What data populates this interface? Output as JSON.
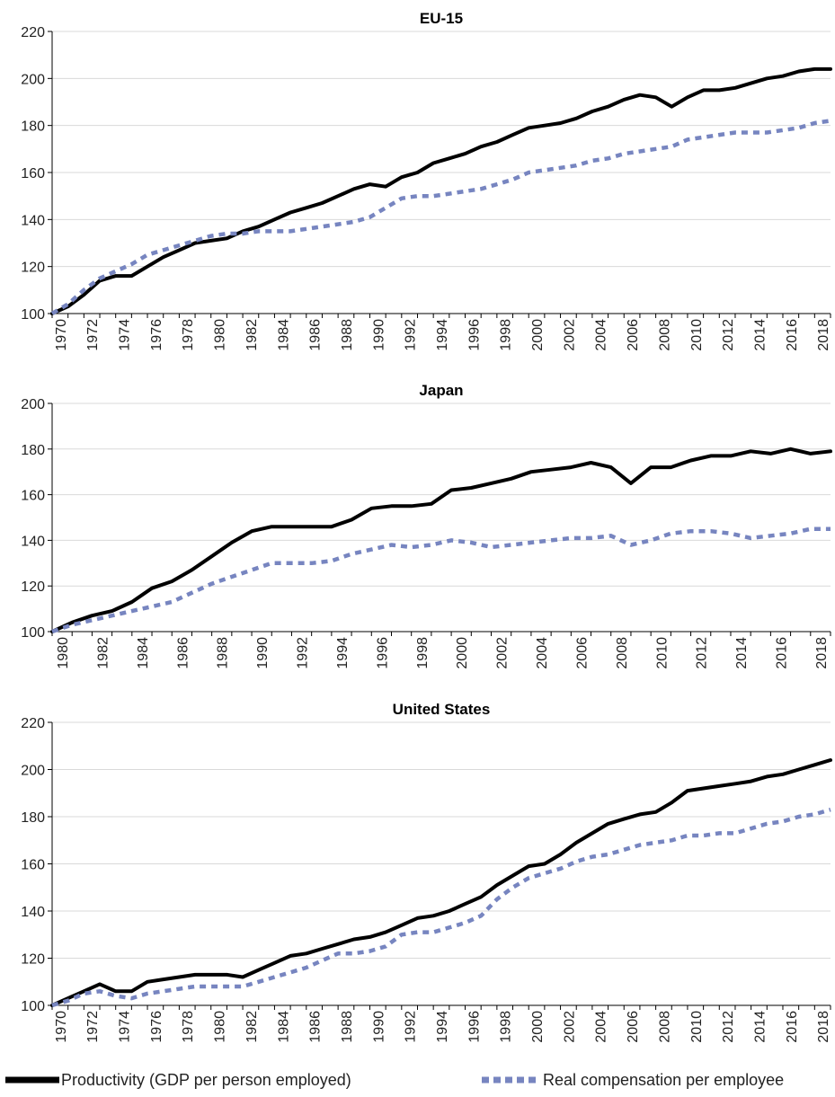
{
  "chart_data": [
    {
      "type": "line",
      "title": "EU-15",
      "ylim": [
        100,
        220
      ],
      "yticks": [
        100,
        120,
        140,
        160,
        180,
        200,
        220
      ],
      "xlim": [
        1970,
        2019
      ],
      "xticks": [
        "1970",
        "1972",
        "1974",
        "1976",
        "1978",
        "1980",
        "1982",
        "1984",
        "1986",
        "1988",
        "1990",
        "1992",
        "1994",
        "1996",
        "1998",
        "2000",
        "2002",
        "2004",
        "2006",
        "2008",
        "2010",
        "2012",
        "2014",
        "2016",
        "2018"
      ],
      "grid": true,
      "x": [
        1970,
        1971,
        1972,
        1973,
        1974,
        1975,
        1976,
        1977,
        1978,
        1979,
        1980,
        1981,
        1982,
        1983,
        1984,
        1985,
        1986,
        1987,
        1988,
        1989,
        1990,
        1991,
        1992,
        1993,
        1994,
        1995,
        1996,
        1997,
        1998,
        1999,
        2000,
        2001,
        2002,
        2003,
        2004,
        2005,
        2006,
        2007,
        2008,
        2009,
        2010,
        2011,
        2012,
        2013,
        2014,
        2015,
        2016,
        2017,
        2018,
        2019
      ],
      "series": [
        {
          "name": "Productivity (GDP per person employed)",
          "color": "#000000",
          "style": "solid",
          "values": [
            100,
            103,
            108,
            114,
            116,
            116,
            120,
            124,
            127,
            130,
            131,
            132,
            135,
            137,
            140,
            143,
            145,
            147,
            150,
            153,
            155,
            154,
            158,
            160,
            164,
            166,
            168,
            171,
            173,
            176,
            179,
            180,
            181,
            183,
            186,
            188,
            191,
            193,
            192,
            188,
            192,
            195,
            195,
            196,
            198,
            200,
            201,
            203,
            204,
            204
          ]
        },
        {
          "name": "Real compensation per employee",
          "color": "#7785c0",
          "style": "dashed",
          "values": [
            100,
            104,
            110,
            115,
            118,
            121,
            125,
            127,
            129,
            131,
            133,
            134,
            134,
            135,
            135,
            135,
            136,
            137,
            138,
            139,
            141,
            145,
            149,
            150,
            150,
            151,
            152,
            153,
            155,
            157,
            160,
            161,
            162,
            163,
            165,
            166,
            168,
            169,
            170,
            171,
            174,
            175,
            176,
            177,
            177,
            177,
            178,
            179,
            181,
            182
          ]
        }
      ]
    },
    {
      "type": "line",
      "title": "Japan",
      "ylim": [
        100,
        200
      ],
      "yticks": [
        100,
        120,
        140,
        160,
        180,
        200
      ],
      "xlim": [
        1980,
        2019
      ],
      "xticks": [
        "1980",
        "1982",
        "1984",
        "1986",
        "1988",
        "1990",
        "1992",
        "1994",
        "1996",
        "1998",
        "2000",
        "2002",
        "2004",
        "2006",
        "2008",
        "2010",
        "2012",
        "2014",
        "2016",
        "2018"
      ],
      "grid": true,
      "x": [
        1980,
        1981,
        1982,
        1983,
        1984,
        1985,
        1986,
        1987,
        1988,
        1989,
        1990,
        1991,
        1992,
        1993,
        1994,
        1995,
        1996,
        1997,
        1998,
        1999,
        2000,
        2001,
        2002,
        2003,
        2004,
        2005,
        2006,
        2007,
        2008,
        2009,
        2010,
        2011,
        2012,
        2013,
        2014,
        2015,
        2016,
        2017,
        2018,
        2019
      ],
      "series": [
        {
          "name": "Productivity (GDP per person employed)",
          "color": "#000000",
          "style": "solid",
          "values": [
            100,
            104,
            107,
            109,
            113,
            119,
            122,
            127,
            133,
            139,
            144,
            146,
            146,
            146,
            146,
            149,
            154,
            155,
            155,
            156,
            162,
            163,
            165,
            167,
            170,
            171,
            172,
            174,
            172,
            165,
            172,
            172,
            175,
            177,
            177,
            179,
            178,
            180,
            178,
            179
          ]
        },
        {
          "name": "Real compensation per employee",
          "color": "#7785c0",
          "style": "dashed",
          "values": [
            100,
            103,
            105,
            107,
            109,
            111,
            113,
            117,
            121,
            124,
            127,
            130,
            130,
            130,
            131,
            134,
            136,
            138,
            137,
            138,
            140,
            139,
            137,
            138,
            139,
            140,
            141,
            141,
            142,
            138,
            140,
            143,
            144,
            144,
            143,
            141,
            142,
            143,
            145,
            145
          ]
        }
      ]
    },
    {
      "type": "line",
      "title": "United States",
      "ylim": [
        100,
        220
      ],
      "yticks": [
        100,
        120,
        140,
        160,
        180,
        200,
        220
      ],
      "xlim": [
        1970,
        2019
      ],
      "xticks": [
        "1970",
        "1972",
        "1974",
        "1976",
        "1978",
        "1980",
        "1982",
        "1984",
        "1986",
        "1988",
        "1990",
        "1992",
        "1994",
        "1996",
        "1998",
        "2000",
        "2002",
        "2004",
        "2006",
        "2008",
        "2010",
        "2012",
        "2014",
        "2016",
        "2018"
      ],
      "grid": true,
      "x": [
        1970,
        1971,
        1972,
        1973,
        1974,
        1975,
        1976,
        1977,
        1978,
        1979,
        1980,
        1981,
        1982,
        1983,
        1984,
        1985,
        1986,
        1987,
        1988,
        1989,
        1990,
        1991,
        1992,
        1993,
        1994,
        1995,
        1996,
        1997,
        1998,
        1999,
        2000,
        2001,
        2002,
        2003,
        2004,
        2005,
        2006,
        2007,
        2008,
        2009,
        2010,
        2011,
        2012,
        2013,
        2014,
        2015,
        2016,
        2017,
        2018,
        2019
      ],
      "series": [
        {
          "name": "Productivity (GDP per person employed)",
          "color": "#000000",
          "style": "solid",
          "values": [
            100,
            103,
            106,
            109,
            106,
            106,
            110,
            111,
            112,
            113,
            113,
            113,
            112,
            115,
            118,
            121,
            122,
            124,
            126,
            128,
            129,
            131,
            134,
            137,
            138,
            140,
            143,
            146,
            151,
            155,
            159,
            160,
            164,
            169,
            173,
            177,
            179,
            181,
            182,
            186,
            191,
            192,
            193,
            194,
            195,
            197,
            198,
            200,
            202,
            204
          ]
        },
        {
          "name": "Real compensation per employee",
          "color": "#7785c0",
          "style": "dashed",
          "values": [
            100,
            102,
            105,
            106,
            104,
            103,
            105,
            106,
            107,
            108,
            108,
            108,
            108,
            110,
            112,
            114,
            116,
            119,
            122,
            122,
            123,
            125,
            130,
            131,
            131,
            133,
            135,
            138,
            145,
            150,
            154,
            156,
            158,
            161,
            163,
            164,
            166,
            168,
            169,
            170,
            172,
            172,
            173,
            173,
            175,
            177,
            178,
            180,
            181,
            183
          ]
        }
      ]
    }
  ],
  "legend": [
    {
      "label": "Productivity (GDP per person employed)",
      "color": "#000000",
      "style": "solid"
    },
    {
      "label": "Real compensation per employee",
      "color": "#7785c0",
      "style": "dashed"
    }
  ]
}
